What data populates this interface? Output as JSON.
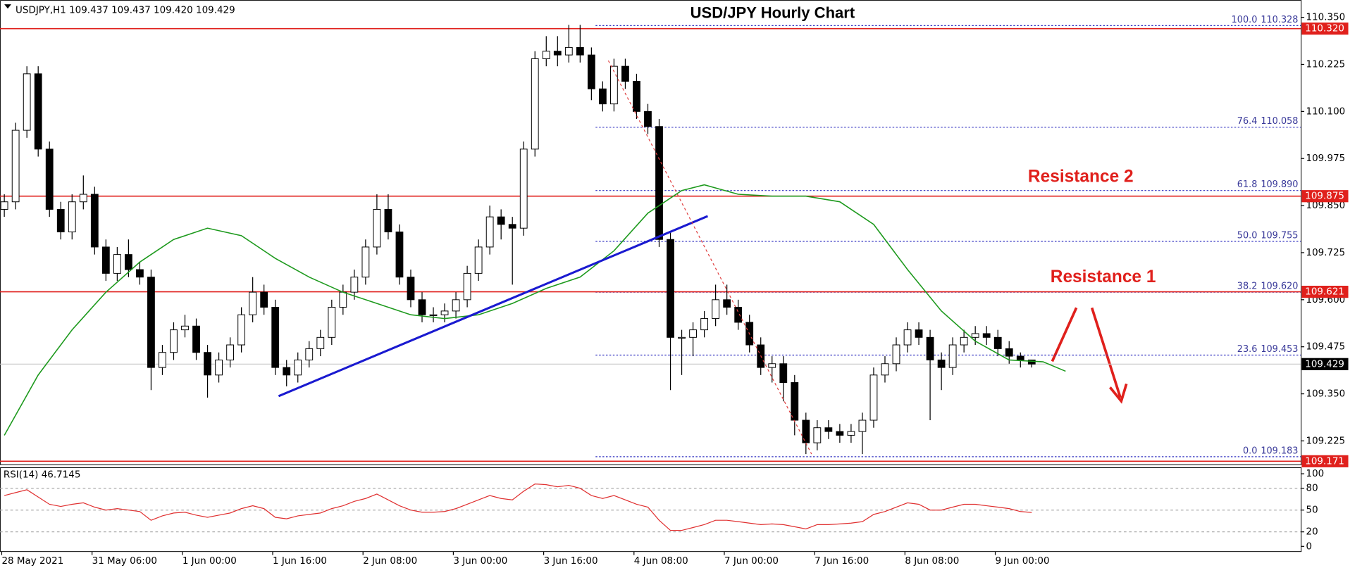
{
  "chart_data": {
    "type": "candlestick",
    "header": "USDJPY,H1  109.437 109.437 109.420 109.429",
    "title": "USD/JPY Hourly Chart",
    "annotations": [
      "Resistance 2",
      "Resistance 1"
    ],
    "categories": [
      "28 May 2021",
      null,
      null,
      null,
      null,
      null,
      null,
      null,
      "31 May 06:00",
      null,
      null,
      null,
      null,
      null,
      null,
      null,
      "1 Jun 00:00",
      null,
      null,
      null,
      null,
      null,
      null,
      null,
      "1 Jun 16:00",
      null,
      null,
      null,
      null,
      null,
      null,
      null,
      "2 Jun 08:00",
      null,
      null,
      null,
      null,
      null,
      null,
      null,
      "3 Jun 00:00",
      null,
      null,
      null,
      null,
      null,
      null,
      null,
      "3 Jun 16:00",
      null,
      null,
      null,
      null,
      null,
      null,
      null,
      "4 Jun 08:00",
      null,
      null,
      null,
      null,
      null,
      null,
      null,
      "7 Jun 00:00",
      null,
      null,
      null,
      null,
      null,
      null,
      null,
      "7 Jun 16:00",
      null,
      null,
      null,
      null,
      null,
      null,
      null,
      "8 Jun 08:00",
      null,
      null,
      null,
      null,
      null,
      null,
      null,
      "9 Jun 00:00",
      null,
      null,
      null
    ],
    "open": [
      109.84,
      109.86,
      110.05,
      110.2,
      110.0,
      109.84,
      109.78,
      109.86,
      109.88,
      109.74,
      109.67,
      109.72,
      109.68,
      109.66,
      109.42,
      109.46,
      109.52,
      109.53,
      109.46,
      109.4,
      109.44,
      109.48,
      109.56,
      109.62,
      109.58,
      109.42,
      109.4,
      109.44,
      109.47,
      109.5,
      109.58,
      109.62,
      109.66,
      109.74,
      109.84,
      109.78,
      109.66,
      109.6,
      109.56,
      109.56,
      109.57,
      109.6,
      109.67,
      109.74,
      109.82,
      109.8,
      109.79,
      110.0,
      110.24,
      110.26,
      110.25,
      110.27,
      110.25,
      110.16,
      110.12,
      110.22,
      110.18,
      110.1,
      110.06,
      109.76,
      109.5,
      109.5,
      109.52,
      109.55,
      109.6,
      109.58,
      109.54,
      109.48,
      109.42,
      109.43,
      109.38,
      109.28,
      109.22,
      109.26,
      109.25,
      109.24,
      109.25,
      109.28,
      109.4,
      109.43,
      109.48,
      109.52,
      109.5,
      109.44,
      109.42,
      109.48,
      109.5,
      109.51,
      109.5,
      109.47,
      109.45,
      109.44
    ],
    "high": [
      109.88,
      110.07,
      110.22,
      110.22,
      110.02,
      109.86,
      109.88,
      109.93,
      109.9,
      109.76,
      109.74,
      109.76,
      109.7,
      109.68,
      109.48,
      109.54,
      109.56,
      109.55,
      109.48,
      109.46,
      109.5,
      109.58,
      109.66,
      109.64,
      109.6,
      109.44,
      109.46,
      109.49,
      109.52,
      109.6,
      109.64,
      109.68,
      109.76,
      109.88,
      109.88,
      109.8,
      109.68,
      109.62,
      109.58,
      109.59,
      109.62,
      109.69,
      109.76,
      109.85,
      109.84,
      109.82,
      110.02,
      110.26,
      110.3,
      110.3,
      110.33,
      110.33,
      110.27,
      110.18,
      110.24,
      110.24,
      110.2,
      110.12,
      110.08,
      109.78,
      109.52,
      109.54,
      109.57,
      109.64,
      109.64,
      109.6,
      109.56,
      109.5,
      109.45,
      109.45,
      109.4,
      109.3,
      109.28,
      109.28,
      109.27,
      109.27,
      109.3,
      109.42,
      109.45,
      109.5,
      109.54,
      109.54,
      109.52,
      109.46,
      109.5,
      109.52,
      109.53,
      109.53,
      109.52,
      109.49,
      109.46,
      109.437
    ],
    "low": [
      109.82,
      109.84,
      110.03,
      109.98,
      109.82,
      109.76,
      109.76,
      109.84,
      109.72,
      109.65,
      109.65,
      109.66,
      109.64,
      109.36,
      109.4,
      109.44,
      109.5,
      109.44,
      109.34,
      109.38,
      109.42,
      109.46,
      109.54,
      109.56,
      109.4,
      109.37,
      109.38,
      109.42,
      109.45,
      109.48,
      109.56,
      109.6,
      109.64,
      109.72,
      109.76,
      109.64,
      109.58,
      109.54,
      109.54,
      109.54,
      109.55,
      109.58,
      109.65,
      109.72,
      109.76,
      109.64,
      109.77,
      109.98,
      110.22,
      110.22,
      110.23,
      110.23,
      110.13,
      110.1,
      110.1,
      110.16,
      110.08,
      110.04,
      109.74,
      109.36,
      109.4,
      109.45,
      109.5,
      109.53,
      109.56,
      109.52,
      109.46,
      109.4,
      109.38,
      109.33,
      109.24,
      109.19,
      109.2,
      109.23,
      109.22,
      109.22,
      109.19,
      109.26,
      109.38,
      109.41,
      109.46,
      109.48,
      109.28,
      109.36,
      109.4,
      109.46,
      109.48,
      109.48,
      109.45,
      109.43,
      109.42,
      109.42
    ],
    "close": [
      109.86,
      110.05,
      110.2,
      110.0,
      109.84,
      109.78,
      109.86,
      109.88,
      109.74,
      109.67,
      109.72,
      109.68,
      109.66,
      109.42,
      109.46,
      109.52,
      109.53,
      109.46,
      109.4,
      109.44,
      109.48,
      109.56,
      109.62,
      109.58,
      109.42,
      109.4,
      109.44,
      109.47,
      109.5,
      109.58,
      109.62,
      109.66,
      109.74,
      109.84,
      109.78,
      109.66,
      109.6,
      109.56,
      109.56,
      109.57,
      109.6,
      109.67,
      109.74,
      109.82,
      109.8,
      109.79,
      110.0,
      110.24,
      110.26,
      110.25,
      110.27,
      110.25,
      110.16,
      110.12,
      110.22,
      110.18,
      110.1,
      110.06,
      109.76,
      109.5,
      109.5,
      109.52,
      109.55,
      109.6,
      109.58,
      109.54,
      109.48,
      109.42,
      109.43,
      109.38,
      109.28,
      109.22,
      109.26,
      109.25,
      109.24,
      109.25,
      109.28,
      109.4,
      109.43,
      109.48,
      109.52,
      109.5,
      109.44,
      109.42,
      109.48,
      109.5,
      109.51,
      109.5,
      109.47,
      109.45,
      109.44,
      109.429
    ],
    "ma": {
      "color": "#1e9a1e",
      "x": [
        0,
        3,
        6,
        9,
        12,
        15,
        18,
        21,
        24,
        27,
        30,
        33,
        36,
        39,
        42,
        45,
        48,
        51,
        54,
        57,
        60,
        62,
        65,
        68,
        71,
        74,
        77,
        80,
        83,
        86,
        89,
        92,
        94
      ],
      "values": [
        109.24,
        109.4,
        109.52,
        109.62,
        109.7,
        109.76,
        109.79,
        109.77,
        109.71,
        109.66,
        109.62,
        109.59,
        109.56,
        109.55,
        109.56,
        109.59,
        109.63,
        109.66,
        109.73,
        109.83,
        109.89,
        109.905,
        109.88,
        109.875,
        109.875,
        109.86,
        109.8,
        109.68,
        109.57,
        109.49,
        109.44,
        109.435,
        109.41
      ]
    },
    "trendline": {
      "color": "#1a1ad0",
      "x": [
        24.3,
        62.3
      ],
      "values": [
        109.344,
        109.822
      ]
    },
    "fib_line": {
      "color": "#e04040",
      "x": [
        53.5,
        71.5
      ],
      "values": [
        110.235,
        109.19
      ]
    },
    "fib_levels": [
      {
        "level": {
          "value": 100,
          "label": "100.0"
        },
        "price": 110.328
      },
      {
        "level": 76.4,
        "price": 110.058
      },
      {
        "level": 61.8,
        "price": {
          "value": 109.89,
          "label": "109.890"
        }
      },
      {
        "level": {
          "value": 50,
          "label": "50.0"
        },
        "price": 109.755
      },
      {
        "level": 38.2,
        "price": {
          "value": 109.62,
          "label": "109.620"
        }
      },
      {
        "level": 23.6,
        "price": 109.453
      },
      {
        "level": {
          "value": 0,
          "label": "0.0"
        },
        "price": 109.183
      }
    ],
    "levels": [
      {
        "value": 110.32,
        "label": "110.320"
      },
      109.875,
      109.621,
      109.171
    ],
    "level_color": "#e0201c",
    "current_price": 109.429,
    "ylim": [
      109.163,
      110.396
    ],
    "yticks": [
      {
        "value": 110.35,
        "label": "110.350"
      },
      110.225,
      {
        "value": 110.1,
        "label": "110.100"
      },
      109.975,
      {
        "value": 109.85,
        "label": "109.850"
      },
      109.725,
      {
        "value": 109.6,
        "label": "109.600"
      },
      109.475,
      {
        "value": 109.35,
        "label": "109.350"
      },
      109.225
    ],
    "rsi": {
      "label": "RSI(14) 46.7145",
      "color": "#e03030",
      "ylim": [
        0,
        100
      ],
      "yticks": [
        100,
        80,
        50,
        20,
        0
      ],
      "levels": [
        80,
        50,
        20
      ],
      "values": [
        70,
        74,
        78,
        68,
        58,
        55,
        58,
        60,
        54,
        50,
        52,
        50,
        48,
        36,
        42,
        46,
        47,
        43,
        40,
        43,
        46,
        52,
        56,
        52,
        40,
        38,
        42,
        44,
        46,
        52,
        56,
        62,
        66,
        72,
        64,
        56,
        50,
        47,
        47,
        48,
        52,
        58,
        64,
        70,
        66,
        64,
        76,
        86,
        85,
        82,
        84,
        80,
        70,
        66,
        70,
        64,
        58,
        54,
        36,
        22,
        22,
        26,
        30,
        36,
        36,
        34,
        32,
        30,
        31,
        30,
        27,
        24,
        30,
        30,
        31,
        32,
        34,
        44,
        48,
        54,
        60,
        58,
        50,
        50,
        54,
        58,
        58,
        56,
        54,
        52,
        48,
        46.7145
      ]
    }
  }
}
